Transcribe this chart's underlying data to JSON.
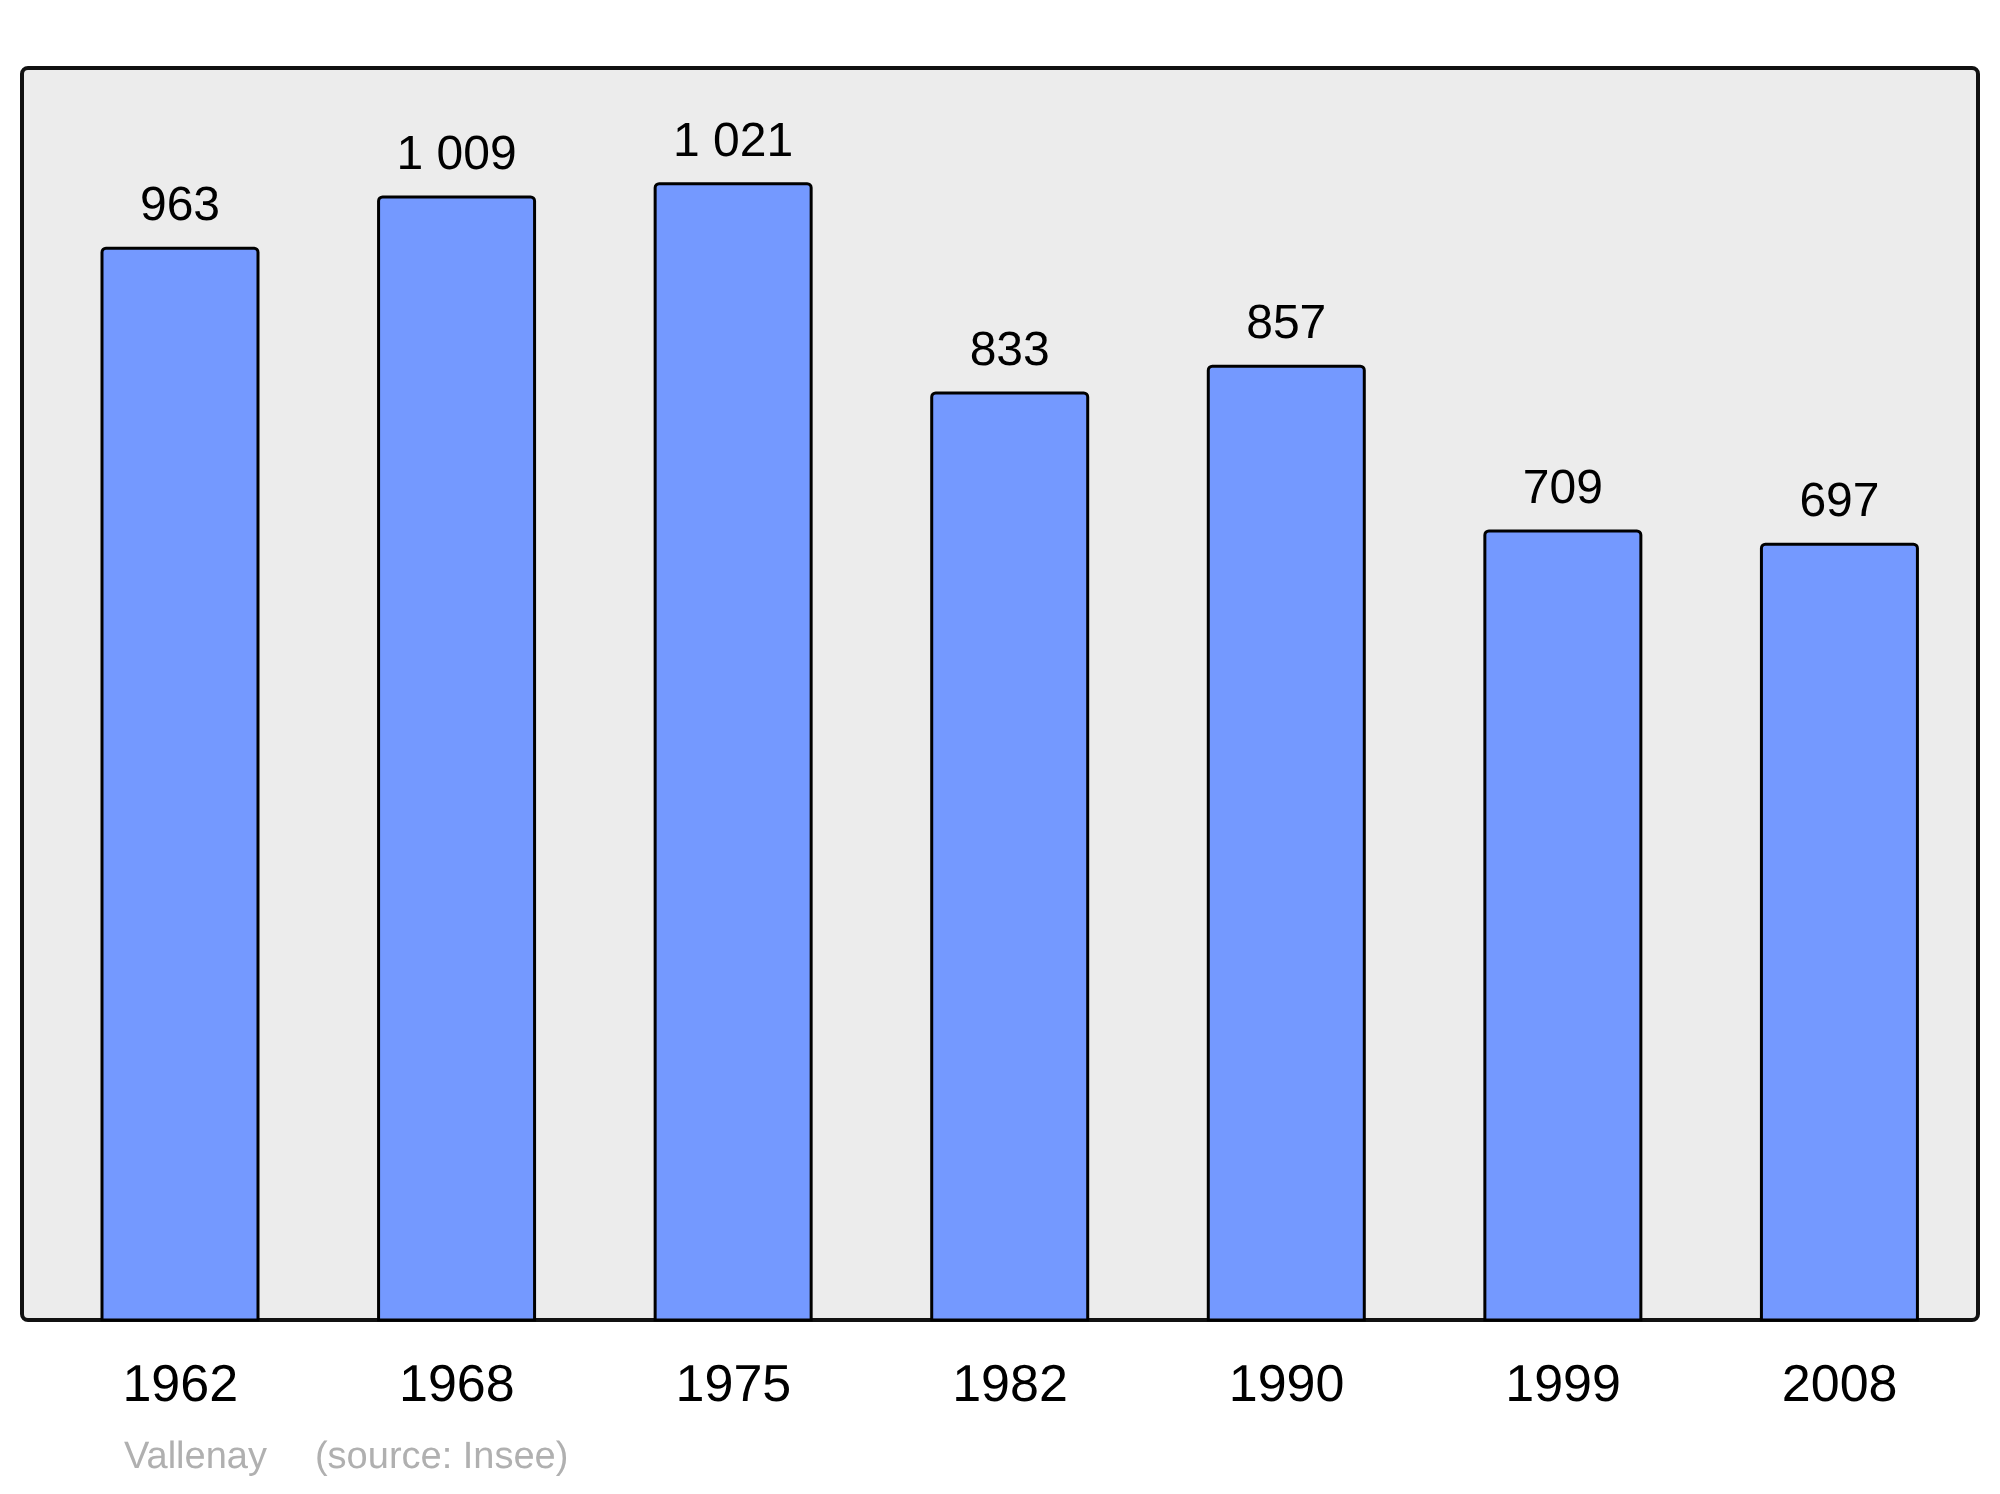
{
  "chart_data": {
    "type": "bar",
    "categories": [
      "1962",
      "1968",
      "1975",
      "1982",
      "1990",
      "1999",
      "2008"
    ],
    "values": [
      963,
      1009,
      1021,
      833,
      857,
      709,
      697
    ],
    "value_labels": [
      "963",
      "1 009",
      "1 021",
      "833",
      "857",
      "709",
      "697"
    ],
    "color": "#7499ff",
    "annotations": [
      "Vallenay",
      "(source: Insee)"
    ]
  }
}
